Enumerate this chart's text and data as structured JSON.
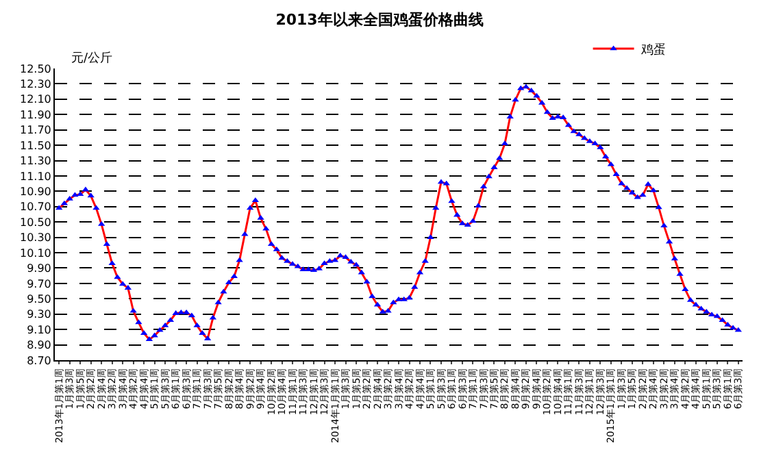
{
  "chart_data": {
    "type": "line",
    "title": "2013年以来全国鸡蛋价格曲线",
    "ylabel": "元/公斤",
    "categories": [
      "2013年1月第1周",
      null,
      "1月第3周",
      null,
      "1月第5周",
      null,
      "2月第2周",
      null,
      "2月第4周",
      null,
      "3月第2周",
      null,
      "3月第4周",
      null,
      "4月第2周",
      null,
      "4月第4周",
      null,
      "5月第1周",
      null,
      "5月第3周",
      null,
      "6月第1周",
      null,
      "6月第3周",
      null,
      "7月第1周",
      null,
      "7月第3周",
      null,
      "7月第5周",
      null,
      "8月第2周",
      null,
      "8月第4周",
      null,
      "9月第2周",
      null,
      "9月第4周",
      null,
      "10月第2周",
      null,
      "10月第4周",
      null,
      "11月第1周",
      null,
      "11月第3周",
      null,
      "12月第1周",
      null,
      "12月第3周",
      null,
      "2014年1月第1周",
      null,
      "1月第3周",
      null,
      "1月第5周",
      null,
      "2月第2周",
      null,
      "2月第4周",
      null,
      "3月第2周",
      null,
      "3月第4周",
      null,
      "4月第2周",
      null,
      "4月第4周",
      null,
      "5月第1周",
      null,
      "5月第3周",
      null,
      "6月第1周",
      null,
      "6月第3周",
      null,
      "7月第1周",
      null,
      "7月第3周",
      null,
      "7月第5周",
      null,
      "8月第2周",
      null,
      "8月第4周",
      null,
      "9月第2周",
      null,
      "9月第4周",
      null,
      "10月第2周",
      null,
      "10月第4周",
      null,
      "11月第1周",
      null,
      "11月第3周",
      null,
      "12月第1周",
      null,
      "12月第3周",
      null,
      "2015年1月第1周",
      null,
      "1月第3周",
      null,
      "1月第5周",
      null,
      "2月第2周",
      null,
      "2月第4周",
      null,
      "3月第2周",
      null,
      "3月第4周",
      null,
      "4月第2周",
      null,
      "4月第4周",
      null,
      "5月第1周",
      null,
      "5月第3周",
      null,
      "6月第1周",
      null,
      "6月第3周"
    ],
    "series": [
      {
        "name": "鸡蛋",
        "color": "#0000ff",
        "values": [
          10.68,
          10.74,
          10.8,
          10.85,
          10.86,
          10.92,
          10.84,
          10.68,
          10.47,
          10.21,
          9.96,
          9.78,
          9.69,
          9.64,
          9.34,
          9.19,
          9.05,
          8.97,
          9.02,
          9.09,
          9.15,
          9.22,
          9.31,
          9.32,
          9.32,
          9.28,
          9.15,
          9.05,
          8.98,
          9.25,
          9.45,
          9.59,
          9.71,
          9.79,
          10.0,
          10.34,
          10.68,
          10.78,
          10.55,
          10.41,
          10.21,
          10.14,
          10.03,
          9.99,
          9.95,
          9.92,
          9.88,
          9.88,
          9.87,
          9.89,
          9.96,
          9.99,
          10.0,
          10.06,
          10.04,
          9.98,
          9.94,
          9.84,
          9.72,
          9.53,
          9.42,
          9.33,
          9.34,
          9.45,
          9.49,
          9.49,
          9.51,
          9.65,
          9.84,
          9.99,
          10.3,
          10.68,
          11.02,
          11.0,
          10.77,
          10.59,
          10.48,
          10.46,
          10.51,
          10.71,
          10.96,
          11.09,
          11.21,
          11.33,
          11.52,
          11.87,
          12.09,
          12.24,
          12.26,
          12.21,
          12.14,
          12.05,
          11.93,
          11.85,
          11.87,
          11.86,
          11.76,
          11.68,
          11.64,
          11.59,
          11.55,
          11.52,
          11.47,
          11.35,
          11.25,
          11.12,
          11.0,
          10.94,
          10.88,
          10.82,
          10.85,
          10.99,
          10.91,
          10.69,
          10.45,
          10.24,
          10.02,
          9.82,
          9.62,
          9.48,
          9.42,
          9.37,
          9.33,
          9.29,
          9.27,
          9.22,
          9.16,
          9.12,
          9.09
        ]
      }
    ],
    "ylim": [
      8.7,
      12.5
    ],
    "yticks": [
      {
        "value": 8.7,
        "label": "8.70"
      },
      {
        "value": 8.9,
        "label": "8.90"
      },
      {
        "value": 9.1,
        "label": "9.10"
      },
      {
        "value": 9.3,
        "label": "9.30"
      },
      {
        "value": 9.5,
        "label": "9.50"
      },
      {
        "value": 9.7,
        "label": "9.70"
      },
      {
        "value": 9.9,
        "label": "9.90"
      },
      {
        "value": 10.1,
        "label": "10.10"
      },
      {
        "value": 10.3,
        "label": "10.30"
      },
      {
        "value": 10.5,
        "label": "10.50"
      },
      {
        "value": 10.7,
        "label": "10.70"
      },
      {
        "value": 10.9,
        "label": "10.90"
      },
      {
        "value": 11.1,
        "label": "11.10"
      },
      {
        "value": 11.3,
        "label": "11.30"
      },
      {
        "value": 11.5,
        "label": "11.50"
      },
      {
        "value": 11.7,
        "label": "11.70"
      },
      {
        "value": 11.9,
        "label": "11.90"
      },
      {
        "value": 12.1,
        "label": "12.10"
      },
      {
        "value": 12.3,
        "label": "12.30"
      },
      {
        "value": 12.5,
        "label": "12.50"
      }
    ],
    "grid": "y",
    "legend": "top right",
    "marker": "triangle",
    "line_style": "solid"
  }
}
